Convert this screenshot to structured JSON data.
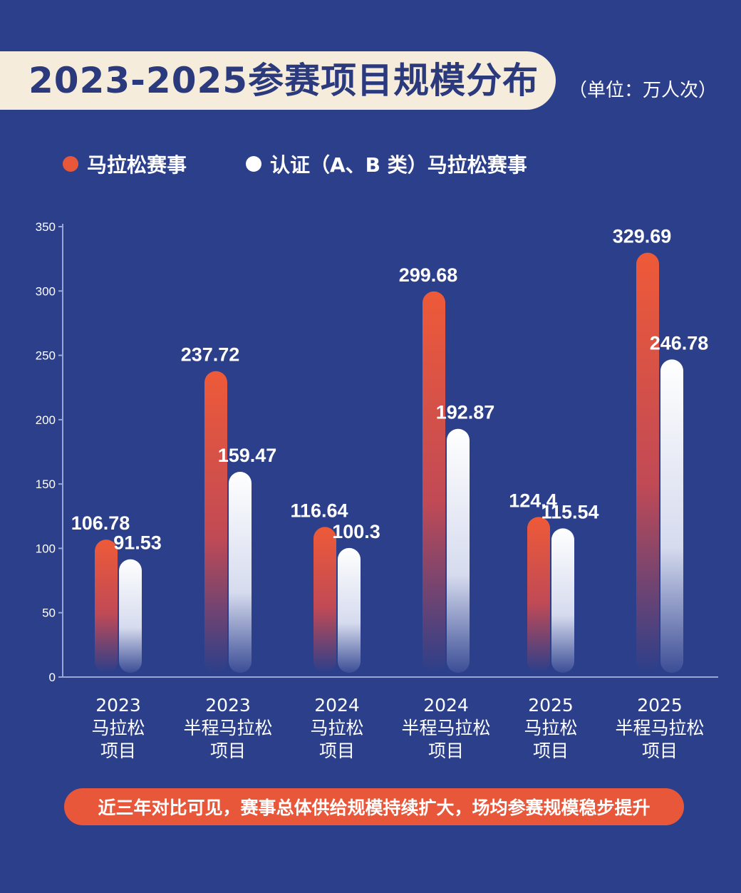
{
  "header": {
    "title": "2023-2025参赛项目规模分布",
    "unit": "（单位：万人次）"
  },
  "legend": {
    "items": [
      {
        "label": "马拉松赛事",
        "color": "#e9573a"
      },
      {
        "label": "认证（A、B 类）马拉松赛事",
        "color": "#ffffff"
      }
    ]
  },
  "chart_data": {
    "type": "bar",
    "categories": [
      [
        "2023",
        "马拉松",
        "项目"
      ],
      [
        "2023",
        "半程马拉松",
        "项目"
      ],
      [
        "2024",
        "马拉松",
        "项目"
      ],
      [
        "2024",
        "半程马拉松",
        "项目"
      ],
      [
        "2025",
        "马拉松",
        "项目"
      ],
      [
        "2025",
        "半程马拉松",
        "项目"
      ]
    ],
    "series": [
      {
        "name": "马拉松赛事",
        "values": [
          106.78,
          237.72,
          116.64,
          299.68,
          124.4,
          329.69
        ],
        "labels": [
          "106.78",
          "237.72",
          "116.64",
          "299.68",
          "124.4",
          "329.69"
        ],
        "color": "#e9573a"
      },
      {
        "name": "认证（A、B 类）马拉松赛事",
        "values": [
          91.53,
          159.47,
          100.3,
          192.87,
          115.54,
          246.78
        ],
        "labels": [
          "91.53",
          "159.47",
          "100.3",
          "192.87",
          "115.54",
          "246.78"
        ],
        "color": "#ffffff"
      }
    ],
    "ylim": [
      0,
      350
    ],
    "yticks": [
      "0",
      "50",
      "100",
      "150",
      "200",
      "250",
      "300",
      "350"
    ],
    "grid": false,
    "legend_position": "top-left"
  },
  "footer": {
    "note": "近三年对比可见，赛事总体供给规模持续扩大，场均参赛规模稳步提升"
  }
}
